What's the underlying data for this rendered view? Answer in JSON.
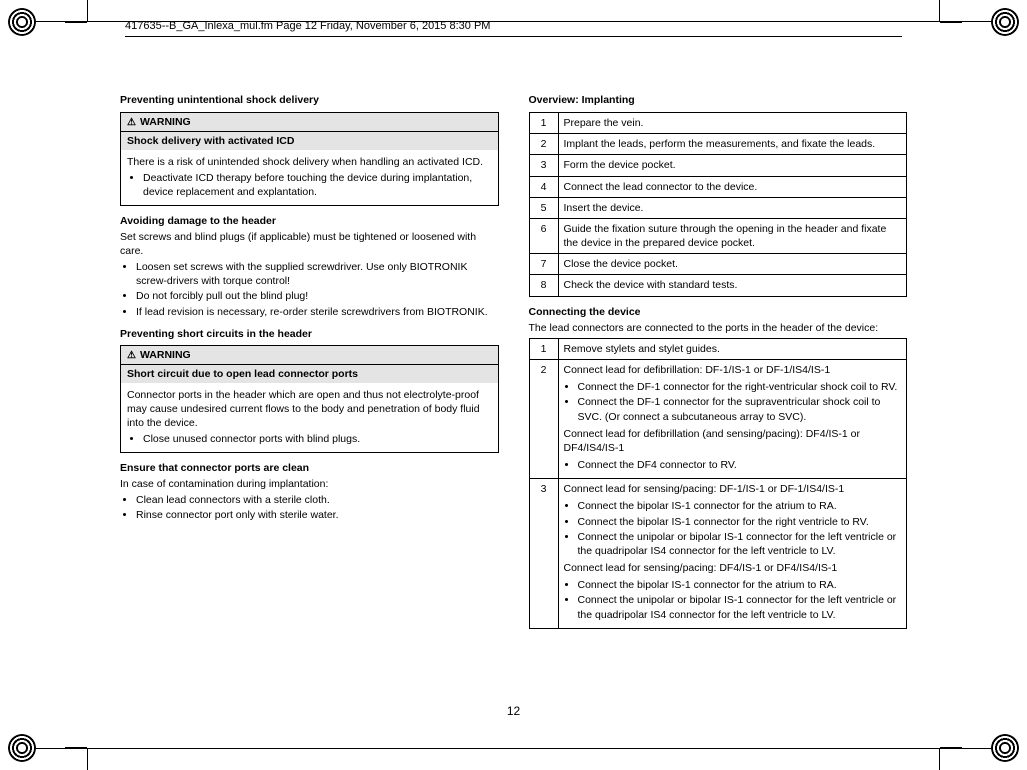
{
  "header": "417635--B_GA_Inlexa_mul.fm  Page 12  Friday, November 6, 2015  8:30 PM",
  "pageNumber": "12",
  "left": {
    "h1": "Preventing unintentional shock delivery",
    "warn1": {
      "title": "WARNING",
      "sub": "Shock delivery with activated ICD",
      "body": "There is a risk of unintended shock delivery when handling an activated ICD.",
      "bullet": "Deactivate ICD therapy before touching the device during implantation, device replacement and explantation."
    },
    "h2": "Avoiding damage to the header",
    "p2": "Set screws and blind plugs (if applicable) must be tightened or loosened with care.",
    "b2a": "Loosen set screws with the supplied screwdriver. Use only BIOTRONIK screw-drivers with torque control!",
    "b2b": "Do not forcibly pull out the blind plug!",
    "b2c": "If lead revision is necessary, re-order sterile screwdrivers from BIOTRONIK.",
    "h3": "Preventing short circuits in the header",
    "warn2": {
      "title": "WARNING",
      "sub": "Short circuit due to open lead connector ports",
      "body": "Connector ports in the header which are open and thus not electrolyte-proof may cause undesired current flows to the body and penetration of body fluid into the device.",
      "bullet": "Close unused connector ports with blind plugs."
    },
    "h4": "Ensure that connector ports are clean",
    "p4": "In case of contamination during implantation:",
    "b4a": "Clean lead connectors with a sterile cloth.",
    "b4b": "Rinse connector port only with sterile water."
  },
  "right": {
    "h1": "Overview: Implanting",
    "steps": [
      "Prepare the vein.",
      "Implant the leads, perform the measurements, and fixate the leads.",
      "Form the device pocket.",
      "Connect the lead connector to the device.",
      "Insert the device.",
      "Guide the fixation suture through the opening in the header and fixate the device in the prepared device pocket.",
      "Close the device pocket.",
      "Check the device with standard tests."
    ],
    "h2": "Connecting the device",
    "p2": "The lead connectors are connected to the ports in the header of the device:",
    "c1": "Remove stylets and stylet guides.",
    "c2": {
      "lead": "Connect lead for defibrillation: DF-1/IS-1 or DF-1/IS4/IS-1",
      "b1": "Connect the DF-1 connector for the right-ventricular shock coil to RV.",
      "b2": "Connect the DF-1 connector for the supraventricular shock coil to SVC. (Or connect a subcutaneous array to SVC).",
      "lead2": "Connect lead for defibrillation (and sensing/pacing): DF4/IS-1 or DF4/IS4/IS-1",
      "b3": "Connect the DF4 connector to RV."
    },
    "c3": {
      "lead": "Connect lead for sensing/pacing: DF-1/IS-1 or DF-1/IS4/IS-1",
      "b1": "Connect the bipolar IS-1 connector for the atrium to RA.",
      "b2": "Connect the bipolar IS-1 connector for the right ventricle to RV.",
      "b3": "Connect the unipolar or bipolar IS-1 connector for the left ventricle or the quadripolar IS4 connector for the left ventricle to LV.",
      "lead2": "Connect lead for sensing/pacing: DF4/IS-1 or DF4/IS4/IS-1",
      "b4": "Connect the bipolar IS-1 connector for the atrium to RA.",
      "b5": "Connect the unipolar or bipolar IS-1 connector for the left ventricle or the quadripolar IS4 connector for the left ventricle to LV."
    }
  }
}
